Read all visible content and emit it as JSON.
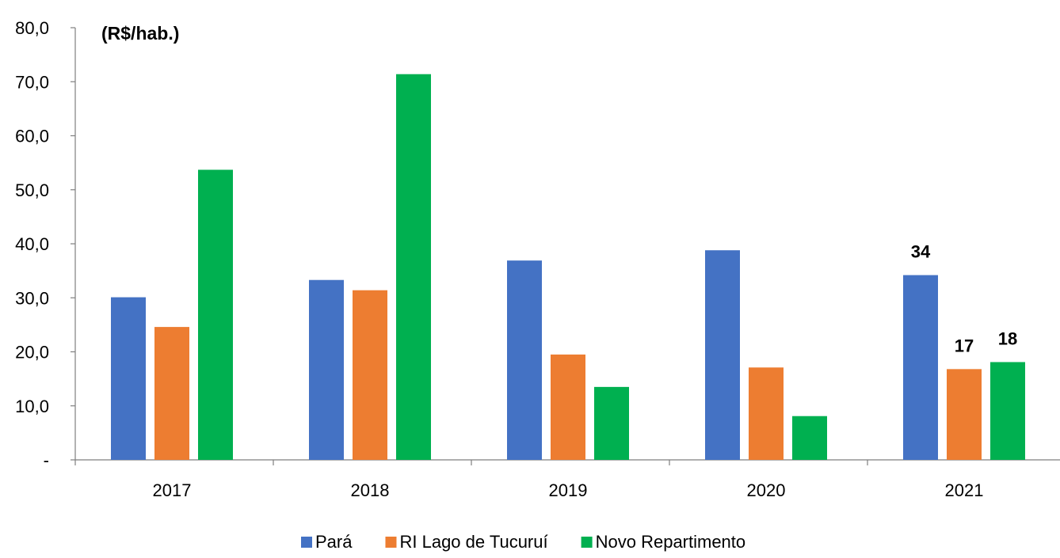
{
  "chart_data": {
    "type": "bar",
    "unit_label": "(R$/hab.)",
    "categories": [
      "2017",
      "2018",
      "2019",
      "2020",
      "2021"
    ],
    "series": [
      {
        "name": "Pará",
        "color": "#4472C4",
        "values": [
          30.1,
          33.3,
          36.9,
          38.8,
          34.2
        ]
      },
      {
        "name": "RI Lago de Tucuruí",
        "color": "#ED7D31",
        "values": [
          24.6,
          31.4,
          19.5,
          17.1,
          16.8
        ]
      },
      {
        "name": "Novo Repartimento",
        "color": "#00B050",
        "values": [
          53.7,
          71.4,
          13.5,
          8.1,
          18.1
        ]
      }
    ],
    "y_ticks": [
      "-",
      "10,0",
      "20,0",
      "30,0",
      "40,0",
      "50,0",
      "60,0",
      "70,0",
      "80,0"
    ],
    "ylim": [
      0,
      80
    ],
    "data_labels": [
      {
        "series": 0,
        "category": 4,
        "text": "34"
      },
      {
        "series": 1,
        "category": 4,
        "text": "17"
      },
      {
        "series": 2,
        "category": 4,
        "text": "18"
      }
    ],
    "legend_position": "bottom",
    "grid": false
  }
}
